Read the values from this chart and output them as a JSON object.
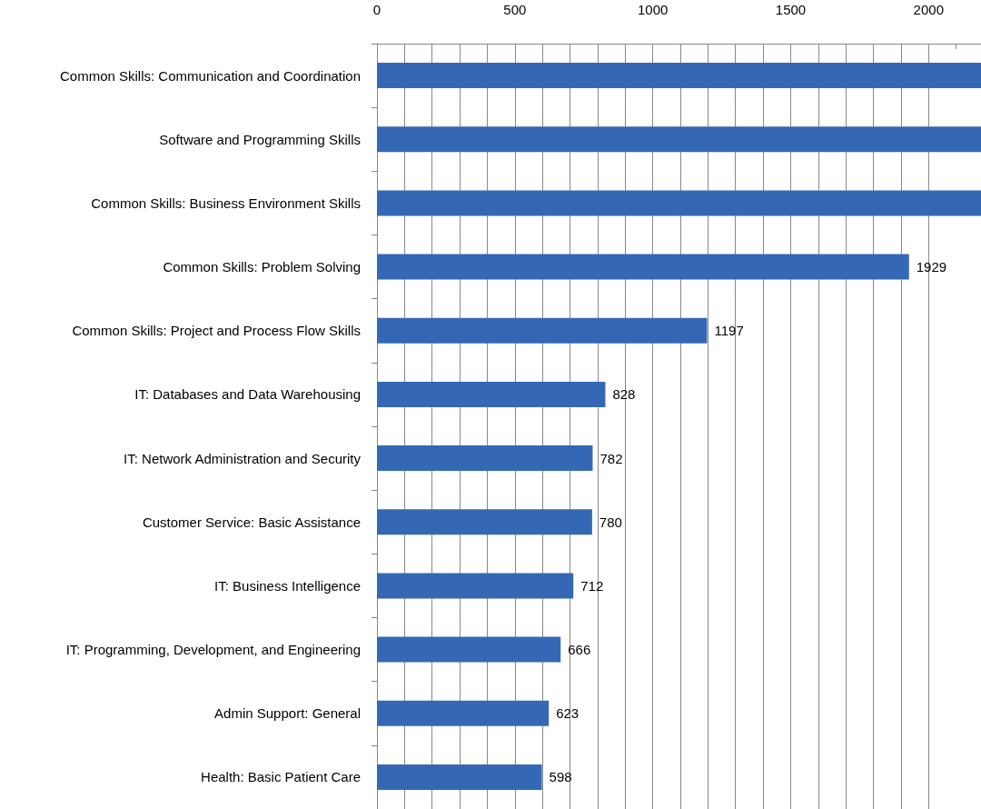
{
  "chart_data": {
    "type": "bar",
    "orientation": "horizontal",
    "categories": [
      "Common Skills: Communication and Coordination",
      "Software and Programming Skills",
      "Common Skills: Business Environment Skills",
      "Common Skills: Problem Solving",
      "Common Skills: Project and Process Flow Skills",
      "IT: Databases and Data Warehousing",
      "IT: Network Administration and Security",
      "Customer Service: Basic Assistance",
      "IT: Business Intelligence",
      "IT: Programming, Development, and Engineering",
      "Admin Support: General",
      "Health: Basic Patient Care"
    ],
    "values": [
      2190,
      2190,
      2190,
      1929,
      1197,
      828,
      782,
      780,
      712,
      666,
      623,
      598
    ],
    "value_labels": [
      null,
      null,
      null,
      "1929",
      "1197",
      "828",
      "782",
      "780",
      "712",
      "666",
      "623",
      "598"
    ],
    "color": "#3568b4",
    "xlim": [
      0,
      2190
    ],
    "xticks": [
      0,
      {
        "value": 100,
        "label": null
      },
      {
        "value": 200,
        "label": null
      },
      {
        "value": 300,
        "label": null
      },
      {
        "value": 400,
        "label": null
      },
      500,
      {
        "value": 600,
        "label": null
      },
      {
        "value": 700,
        "label": null
      },
      {
        "value": 800,
        "label": null
      },
      {
        "value": 900,
        "label": null
      },
      1000,
      {
        "value": 1100,
        "label": null
      },
      {
        "value": 1200,
        "label": null
      },
      {
        "value": 1300,
        "label": null
      },
      {
        "value": 1400,
        "label": null
      },
      1500,
      {
        "value": 1600,
        "label": null
      },
      {
        "value": 1700,
        "label": null
      },
      {
        "value": 1800,
        "label": null
      },
      {
        "value": 1900,
        "label": null
      },
      2000,
      {
        "value": 2100,
        "label": null
      }
    ],
    "grid": "x"
  }
}
